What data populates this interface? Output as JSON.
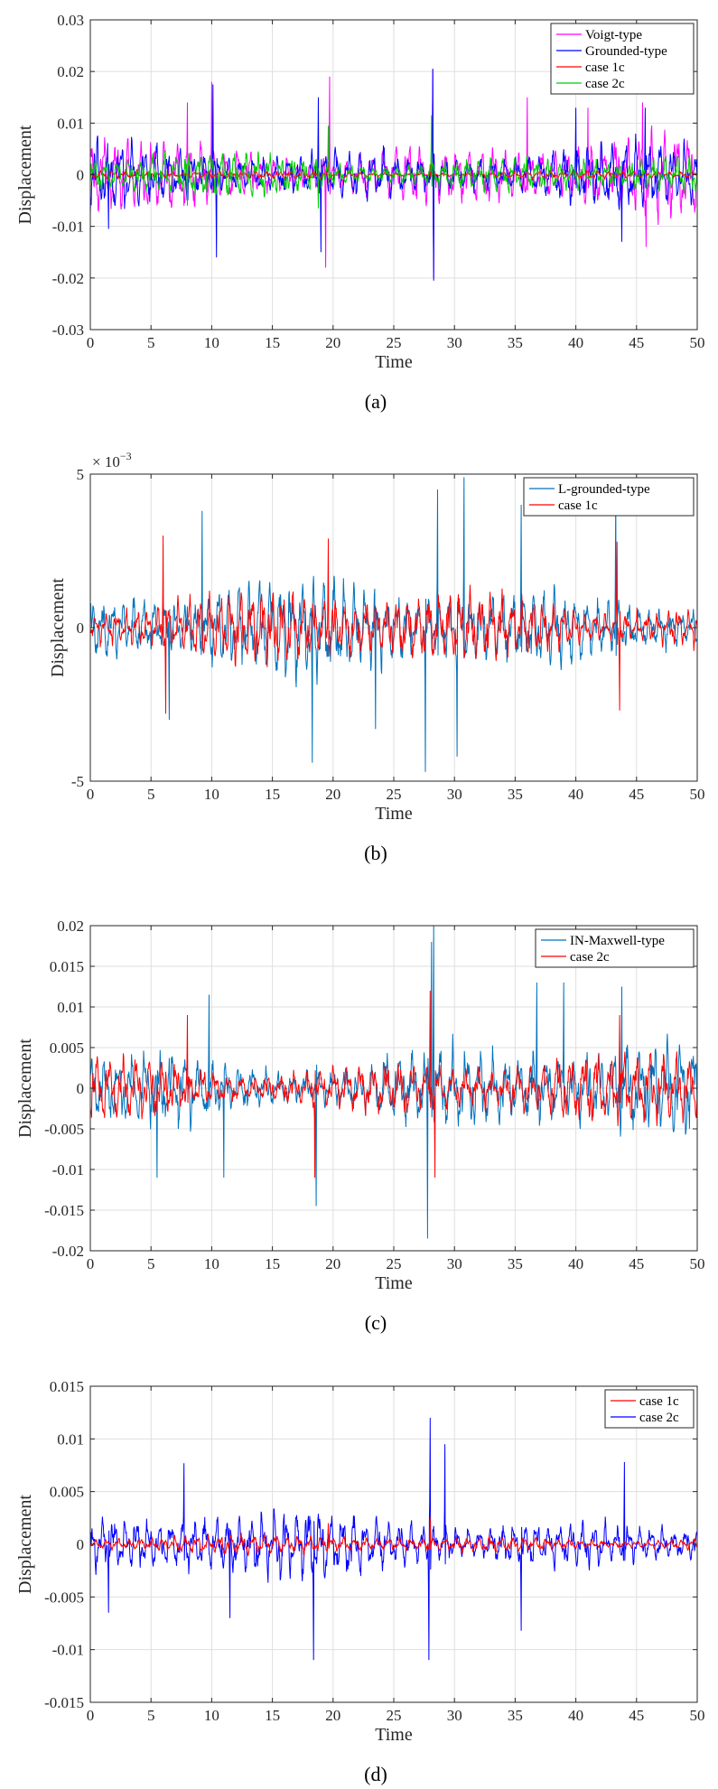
{
  "chart_data": [
    {
      "type": "line",
      "panel_label": "(a)",
      "xlabel": "Time",
      "ylabel": "Displacement",
      "xlim": [
        0,
        50
      ],
      "ylim": [
        -0.03,
        0.03
      ],
      "xticks": [
        0,
        5,
        10,
        15,
        20,
        25,
        30,
        35,
        40,
        45,
        50
      ],
      "yticks": [
        -0.03,
        -0.02,
        -0.01,
        0,
        0.01,
        0.02,
        0.03
      ],
      "ytick_labels": [
        "-0.03",
        "-0.02",
        "-0.01",
        "0",
        "0.01",
        "0.02",
        "0.03"
      ],
      "grid": true,
      "legend_position": "top-right",
      "series": [
        {
          "name": "Voigt-type",
          "color": "#ff00ff",
          "amplitude": 0.0075,
          "peaks": [
            [
              10.0,
              0.018
            ],
            [
              19.7,
              0.019
            ],
            [
              19.4,
              -0.018
            ],
            [
              28.2,
              0.0205
            ],
            [
              28.3,
              -0.02
            ],
            [
              8.0,
              0.014
            ],
            [
              45.8,
              -0.014
            ],
            [
              45.5,
              0.014
            ],
            [
              36.0,
              0.015
            ],
            [
              41.0,
              0.013
            ]
          ]
        },
        {
          "name": "Grounded-type",
          "color": "#0000ff",
          "amplitude": 0.0065,
          "peaks": [
            [
              28.2,
              0.0205
            ],
            [
              28.3,
              -0.0205
            ],
            [
              18.8,
              0.015
            ],
            [
              19.0,
              -0.015
            ],
            [
              10.4,
              -0.016
            ],
            [
              10.1,
              0.0175
            ],
            [
              1.5,
              -0.0105
            ],
            [
              40.0,
              0.013
            ],
            [
              43.8,
              -0.013
            ],
            [
              45.7,
              0.013
            ]
          ]
        },
        {
          "name": "case 1c",
          "color": "#ff0000",
          "amplitude": 0.0009,
          "peaks": [
            [
              19.6,
              0.0025
            ],
            [
              28.0,
              0.002
            ]
          ]
        },
        {
          "name": "case 2c",
          "color": "#00cc00",
          "amplitude": 0.0045,
          "peaks": [
            [
              28.1,
              0.0115
            ],
            [
              19.6,
              0.0095
            ],
            [
              8.0,
              -0.006
            ],
            [
              18.8,
              -0.0065
            ]
          ]
        }
      ]
    },
    {
      "type": "line",
      "panel_label": "(b)",
      "xlabel": "Time",
      "ylabel": "Displacement",
      "y_multiplier": "× 10",
      "y_multiplier_exponent": "−3",
      "xlim": [
        0,
        50
      ],
      "ylim": [
        -5,
        5
      ],
      "xticks": [
        0,
        5,
        10,
        15,
        20,
        25,
        30,
        35,
        40,
        45,
        50
      ],
      "yticks": [
        -5,
        0,
        5
      ],
      "ytick_labels": [
        "-5",
        "0",
        "5"
      ],
      "grid": true,
      "legend_position": "top-right",
      "series": [
        {
          "name": "L-grounded-type",
          "color": "#0072bd",
          "amplitude": 1.6,
          "peaks": [
            [
              30.8,
              4.9
            ],
            [
              27.6,
              -4.7
            ],
            [
              28.6,
              4.5
            ],
            [
              18.3,
              -4.4
            ],
            [
              30.2,
              -4.2
            ],
            [
              35.5,
              4.0
            ],
            [
              43.3,
              4.6
            ],
            [
              23.5,
              -3.3
            ],
            [
              9.2,
              3.8
            ],
            [
              6.5,
              -3.0
            ]
          ]
        },
        {
          "name": "case 1c",
          "color": "#ff0000",
          "amplitude": 1.2,
          "peaks": [
            [
              6.0,
              3.0
            ],
            [
              6.2,
              -2.8
            ],
            [
              19.6,
              2.9
            ],
            [
              43.4,
              2.8
            ],
            [
              43.6,
              -2.7
            ]
          ]
        }
      ]
    },
    {
      "type": "line",
      "panel_label": "(c)",
      "xlabel": "Time",
      "ylabel": "Displacement",
      "xlim": [
        0,
        50
      ],
      "ylim": [
        -0.02,
        0.02
      ],
      "xticks": [
        0,
        5,
        10,
        15,
        20,
        25,
        30,
        35,
        40,
        45,
        50
      ],
      "yticks": [
        -0.02,
        -0.015,
        -0.01,
        -0.005,
        0,
        0.005,
        0.01,
        0.015,
        0.02
      ],
      "ytick_labels": [
        "-0.02",
        "-0.015",
        "-0.01",
        "-0.005",
        "0",
        "0.005",
        "0.01",
        "0.015",
        "0.02"
      ],
      "grid": true,
      "legend_position": "top-right",
      "series": [
        {
          "name": "IN-Maxwell-type",
          "color": "#0072bd",
          "amplitude": 0.0055,
          "peaks": [
            [
              28.3,
              0.02
            ],
            [
              27.8,
              -0.0185
            ],
            [
              28.1,
              0.018
            ],
            [
              18.6,
              -0.0145
            ],
            [
              36.8,
              0.013
            ],
            [
              39.0,
              0.013
            ],
            [
              43.8,
              0.0125
            ],
            [
              9.8,
              0.0115
            ],
            [
              5.5,
              -0.011
            ],
            [
              11.0,
              -0.011
            ]
          ]
        },
        {
          "name": "case 2c",
          "color": "#ff0000",
          "amplitude": 0.0042,
          "peaks": [
            [
              28.0,
              0.012
            ],
            [
              28.4,
              -0.011
            ],
            [
              18.5,
              -0.011
            ],
            [
              8.0,
              0.009
            ],
            [
              43.6,
              0.009
            ]
          ]
        }
      ]
    },
    {
      "type": "line",
      "panel_label": "(d)",
      "xlabel": "Time",
      "ylabel": "Displacement",
      "xlim": [
        0,
        50
      ],
      "ylim": [
        -0.015,
        0.015
      ],
      "xticks": [
        0,
        5,
        10,
        15,
        20,
        25,
        30,
        35,
        40,
        45,
        50
      ],
      "yticks": [
        -0.015,
        -0.01,
        -0.005,
        0,
        0.005,
        0.01,
        0.015
      ],
      "ytick_labels": [
        "-0.015",
        "-0.01",
        "-0.005",
        "0",
        "0.005",
        "0.01",
        "0.015"
      ],
      "grid": true,
      "legend_position": "top-right",
      "series": [
        {
          "name": "case 2c",
          "color": "#0000ff",
          "amplitude": 0.0032,
          "peaks": [
            [
              28.0,
              0.012
            ],
            [
              27.9,
              -0.011
            ],
            [
              18.4,
              -0.011
            ],
            [
              7.7,
              0.0077
            ],
            [
              44.0,
              0.0078
            ],
            [
              35.5,
              -0.0082
            ],
            [
              29.2,
              0.0095
            ],
            [
              11.5,
              -0.007
            ],
            [
              1.5,
              -0.0065
            ]
          ]
        },
        {
          "name": "case 1c",
          "color": "#ff0000",
          "amplitude": 0.0009,
          "peaks": [
            [
              28.0,
              0.0025
            ],
            [
              19.6,
              0.002
            ]
          ]
        }
      ]
    }
  ]
}
